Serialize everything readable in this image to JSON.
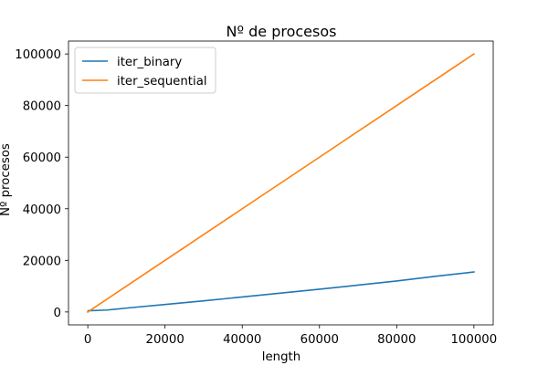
{
  "chart_data": {
    "type": "line",
    "title": "Nº de procesos",
    "xlabel": "length",
    "ylabel": "Nº procesos",
    "xlim": [
      -5000,
      105000
    ],
    "ylim": [
      -5000,
      105000
    ],
    "xticks": [
      0,
      20000,
      40000,
      60000,
      80000,
      100000
    ],
    "yticks": [
      0,
      20000,
      40000,
      60000,
      80000,
      100000
    ],
    "grid": false,
    "legend_position": "upper left",
    "series": [
      {
        "name": "iter_binary",
        "color": "#1f77b4",
        "x": [
          1,
          10,
          100,
          1000,
          5000,
          10000,
          20000,
          30000,
          40000,
          50000,
          60000,
          70000,
          80000,
          90000,
          100000
        ],
        "y": [
          1,
          25,
          500,
          500,
          750,
          1500,
          2900,
          4300,
          5800,
          7300,
          8800,
          10400,
          12000,
          13800,
          15500
        ]
      },
      {
        "name": "iter_sequential",
        "color": "#ff7f0e",
        "x": [
          1,
          100,
          1000,
          10000,
          20000,
          40000,
          60000,
          80000,
          100000
        ],
        "y": [
          1,
          100,
          1000,
          10000,
          20000,
          40000,
          60000,
          80000,
          100000
        ]
      }
    ]
  }
}
